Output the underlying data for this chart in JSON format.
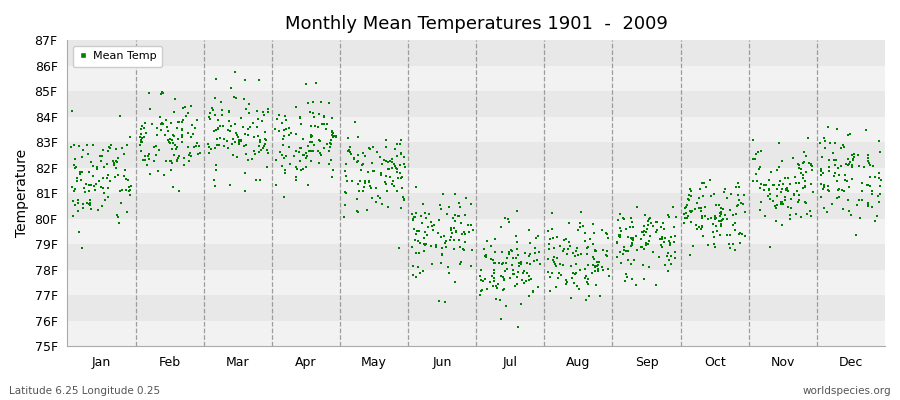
{
  "title": "Monthly Mean Temperatures 1901  -  2009",
  "ylabel": "Temperature",
  "xlabel_labels": [
    "Jan",
    "Feb",
    "Mar",
    "Apr",
    "May",
    "Jun",
    "Jul",
    "Aug",
    "Sep",
    "Oct",
    "Nov",
    "Dec"
  ],
  "ylim": [
    75,
    87
  ],
  "ytick_labels": [
    "75F",
    "76F",
    "77F",
    "78F",
    "79F",
    "80F",
    "81F",
    "82F",
    "83F",
    "84F",
    "85F",
    "86F",
    "87F"
  ],
  "ytick_values": [
    75,
    76,
    77,
    78,
    79,
    80,
    81,
    82,
    83,
    84,
    85,
    86,
    87
  ],
  "dot_color": "#008000",
  "band_color_light": "#f2f2f2",
  "band_color_dark": "#e8e8e8",
  "legend_label": "Mean Temp",
  "footer_left": "Latitude 6.25 Longitude 0.25",
  "footer_right": "worldspecies.org",
  "n_years": 109,
  "month_means": [
    81.5,
    83.0,
    83.4,
    83.1,
    81.8,
    79.2,
    78.2,
    78.3,
    79.1,
    80.2,
    81.3,
    81.7
  ],
  "month_stds": [
    1.0,
    0.9,
    0.85,
    0.85,
    0.85,
    0.85,
    0.85,
    0.75,
    0.75,
    0.75,
    0.85,
    0.9
  ],
  "dashed_line_color": "#888888",
  "title_fontsize": 13,
  "axis_fontsize": 9,
  "ylabel_fontsize": 10,
  "marker_size": 3
}
